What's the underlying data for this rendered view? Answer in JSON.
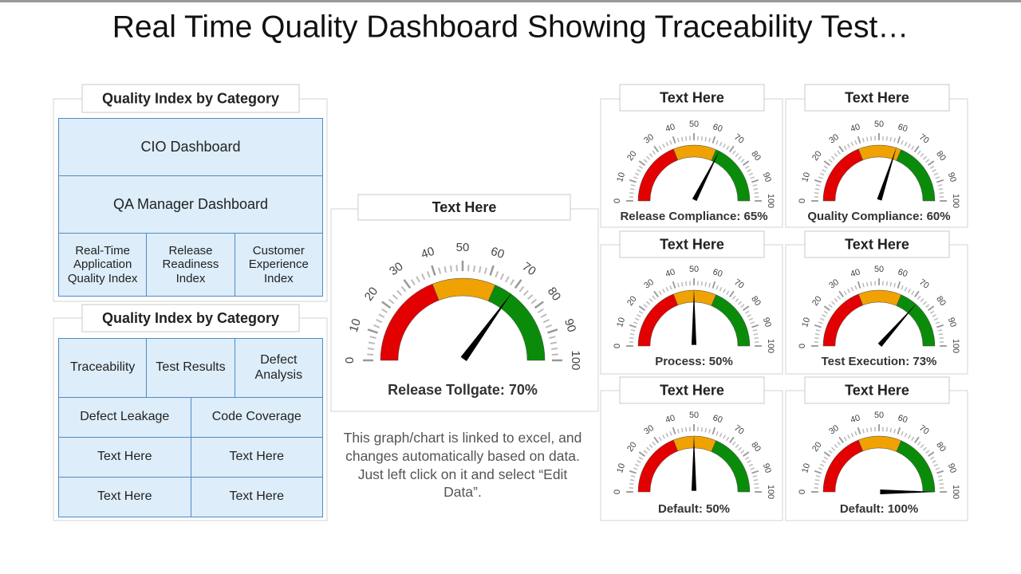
{
  "title": "Real Time Quality Dashboard Showing Traceability Test…",
  "panels": [
    {
      "header": "Quality Index by Category",
      "rows": [
        [
          "CIO Dashboard"
        ],
        [
          "QA Manager Dashboard"
        ],
        [
          "Real-Time Application Quality Index",
          "Release Readiness Index",
          "Customer Experience Index"
        ]
      ]
    },
    {
      "header": "Quality Index by Category",
      "rows": [
        [
          "Traceability",
          "Test Results",
          "Defect Analysis"
        ],
        [
          "Defect Leakage",
          "Code Coverage"
        ],
        [
          "Text Here",
          "Text Here"
        ],
        [
          "Text Here",
          "Text Here"
        ]
      ]
    }
  ],
  "note": "This graph/chart is linked to excel, and changes automatically based on data. Just left click on it and select “Edit Data”.",
  "gauge_scale": {
    "range": [
      0,
      100
    ],
    "ticks": [
      0,
      10,
      20,
      30,
      40,
      50,
      60,
      70,
      80,
      90,
      100
    ]
  },
  "gauge_bands": [
    {
      "from": 0,
      "to": 38,
      "color": "#e30000"
    },
    {
      "from": 38,
      "to": 63,
      "color": "#f0a202"
    },
    {
      "from": 63,
      "to": 100,
      "color": "#0a8c0a"
    }
  ],
  "gauges": [
    {
      "header": "Text Here",
      "label": "Release Tollgate: 70%",
      "value": 70
    },
    {
      "header": "Text Here",
      "label": "Release Compliance: 65%",
      "value": 65
    },
    {
      "header": "Text Here",
      "label": "Quality  Compliance: 60%",
      "value": 60
    },
    {
      "header": "Text Here",
      "label": "Process: 50%",
      "value": 50
    },
    {
      "header": "Text Here",
      "label": "Test Execution: 73%",
      "value": 73
    },
    {
      "header": "Text Here",
      "label": "Default: 50%",
      "value": 50
    },
    {
      "header": "Text Here",
      "label": "Default: 100%",
      "value": 100
    }
  ]
}
